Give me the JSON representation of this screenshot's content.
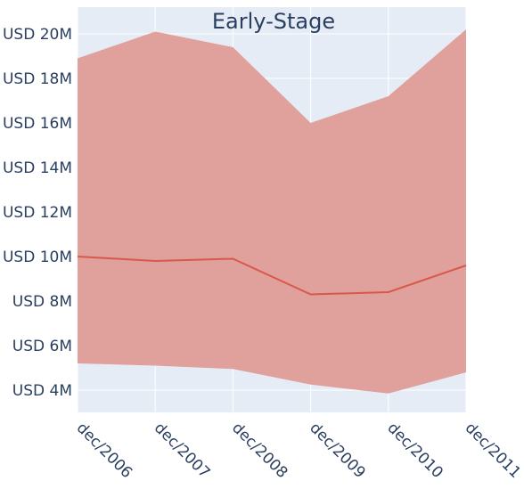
{
  "chart_data": {
    "type": "area",
    "title": "Early-Stage",
    "xlabel": "",
    "ylabel": "",
    "categories": [
      "dec/2006",
      "dec/2007",
      "dec/2008",
      "dec/2009",
      "dec/2010",
      "dec/2011"
    ],
    "y_ticks": [
      {
        "value": 4,
        "label": "USD 4M"
      },
      {
        "value": 6,
        "label": "USD 6M"
      },
      {
        "value": 8,
        "label": "USD 8M"
      },
      {
        "value": 10,
        "label": "USD 10M"
      },
      {
        "value": 12,
        "label": "USD 12M"
      },
      {
        "value": 14,
        "label": "USD 14M"
      },
      {
        "value": 16,
        "label": "USD 16M"
      },
      {
        "value": 18,
        "label": "USD 18M"
      },
      {
        "value": 20,
        "label": "USD 20M"
      }
    ],
    "ylim": [
      3.0,
      21.2
    ],
    "series": [
      {
        "role": "upper",
        "values": [
          18.9,
          20.1,
          19.4,
          16.0,
          17.2,
          20.2
        ]
      },
      {
        "role": "middle",
        "values": [
          10.0,
          9.8,
          9.9,
          8.3,
          8.4,
          9.6
        ]
      },
      {
        "role": "lower",
        "values": [
          5.2,
          5.1,
          4.95,
          4.25,
          3.85,
          4.8
        ]
      }
    ],
    "grid": true,
    "colors": {
      "plot_bg": "#e5ecf6",
      "grid": "#ffffff",
      "band_fill": "#e0a09b",
      "line": "#d9584c",
      "text": "#2a3f5f"
    }
  }
}
